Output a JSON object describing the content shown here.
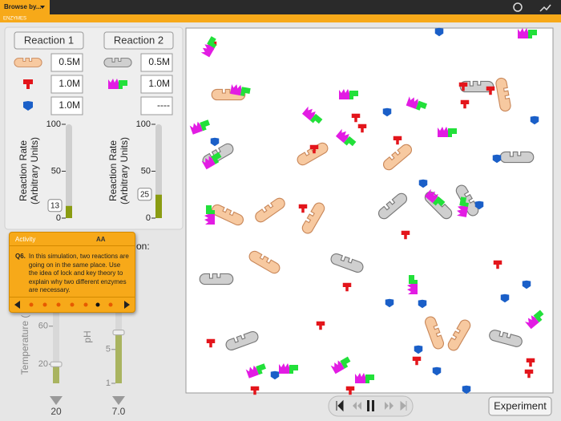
{
  "toolbar": {
    "menu": "Browse by...",
    "title": "ENZYMES"
  },
  "reactions": [
    {
      "button": "Reaction 1",
      "amounts": [
        "0.5M",
        "1.0M",
        "1.0M"
      ],
      "rate": {
        "label": [
          "Reaction Rate",
          "(Arbitrary Units)"
        ],
        "ylim": [
          0,
          100
        ],
        "yticks": [
          0,
          50,
          100
        ],
        "value": 13
      }
    },
    {
      "button": "Reaction 2",
      "amounts": [
        "0.5M",
        "1.0M",
        "----"
      ],
      "rate": {
        "label": [
          "Reaction Rate",
          "(Arbitrary Units)"
        ],
        "ylim": [
          0,
          100
        ],
        "yticks": [
          0,
          50,
          100
        ],
        "value": 25
      }
    }
  ],
  "conditions": {
    "partial_label": "on:",
    "temperature": {
      "label": "Temperature (",
      "ylim": [
        0,
        80
      ],
      "yticks": [
        20,
        60
      ],
      "value": 20
    },
    "ph": {
      "label": "pH",
      "ylim": [
        1,
        10
      ],
      "yticks": [
        1,
        5
      ],
      "value": 7,
      "value_label": "7.0"
    }
  },
  "activity": {
    "title": "Activity",
    "text_size": "AA",
    "question": "Q6.",
    "text": "In this simulation, two reactions are going on in the same place. Use the idea of lock and key theory to explain why two different enzymes are necessary."
  },
  "controls": {
    "experiment": "Experiment"
  }
}
